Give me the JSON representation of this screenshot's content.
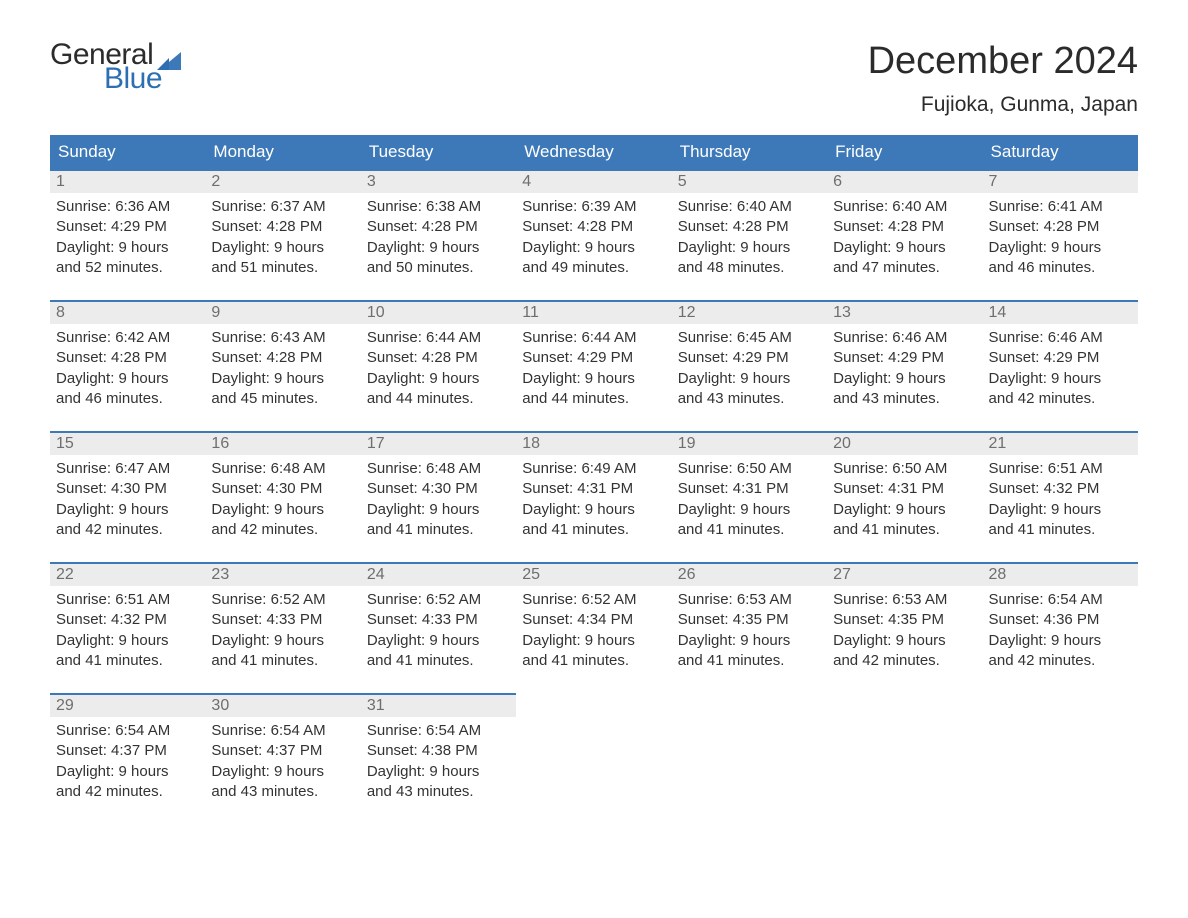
{
  "brand": {
    "text1": "General",
    "text2": "Blue",
    "color1": "#2c2c2c",
    "color2": "#2e6fb3"
  },
  "title": "December 2024",
  "location": "Fujioka, Gunma, Japan",
  "colors": {
    "header_bg": "#3d79b8",
    "header_text": "#ffffff",
    "daynum_bg": "#ececec",
    "daynum_text": "#6e6e6e",
    "day_border": "#3d79b8",
    "body_text": "#333333",
    "page_bg": "#ffffff"
  },
  "fonts": {
    "title_size": 38,
    "location_size": 21,
    "dow_size": 17,
    "daynum_size": 16,
    "body_size": 15
  },
  "daysOfWeek": [
    "Sunday",
    "Monday",
    "Tuesday",
    "Wednesday",
    "Thursday",
    "Friday",
    "Saturday"
  ],
  "weeks": [
    [
      {
        "n": "1",
        "sr": "Sunrise: 6:36 AM",
        "ss": "Sunset: 4:29 PM",
        "d1": "Daylight: 9 hours",
        "d2": "and 52 minutes."
      },
      {
        "n": "2",
        "sr": "Sunrise: 6:37 AM",
        "ss": "Sunset: 4:28 PM",
        "d1": "Daylight: 9 hours",
        "d2": "and 51 minutes."
      },
      {
        "n": "3",
        "sr": "Sunrise: 6:38 AM",
        "ss": "Sunset: 4:28 PM",
        "d1": "Daylight: 9 hours",
        "d2": "and 50 minutes."
      },
      {
        "n": "4",
        "sr": "Sunrise: 6:39 AM",
        "ss": "Sunset: 4:28 PM",
        "d1": "Daylight: 9 hours",
        "d2": "and 49 minutes."
      },
      {
        "n": "5",
        "sr": "Sunrise: 6:40 AM",
        "ss": "Sunset: 4:28 PM",
        "d1": "Daylight: 9 hours",
        "d2": "and 48 minutes."
      },
      {
        "n": "6",
        "sr": "Sunrise: 6:40 AM",
        "ss": "Sunset: 4:28 PM",
        "d1": "Daylight: 9 hours",
        "d2": "and 47 minutes."
      },
      {
        "n": "7",
        "sr": "Sunrise: 6:41 AM",
        "ss": "Sunset: 4:28 PM",
        "d1": "Daylight: 9 hours",
        "d2": "and 46 minutes."
      }
    ],
    [
      {
        "n": "8",
        "sr": "Sunrise: 6:42 AM",
        "ss": "Sunset: 4:28 PM",
        "d1": "Daylight: 9 hours",
        "d2": "and 46 minutes."
      },
      {
        "n": "9",
        "sr": "Sunrise: 6:43 AM",
        "ss": "Sunset: 4:28 PM",
        "d1": "Daylight: 9 hours",
        "d2": "and 45 minutes."
      },
      {
        "n": "10",
        "sr": "Sunrise: 6:44 AM",
        "ss": "Sunset: 4:28 PM",
        "d1": "Daylight: 9 hours",
        "d2": "and 44 minutes."
      },
      {
        "n": "11",
        "sr": "Sunrise: 6:44 AM",
        "ss": "Sunset: 4:29 PM",
        "d1": "Daylight: 9 hours",
        "d2": "and 44 minutes."
      },
      {
        "n": "12",
        "sr": "Sunrise: 6:45 AM",
        "ss": "Sunset: 4:29 PM",
        "d1": "Daylight: 9 hours",
        "d2": "and 43 minutes."
      },
      {
        "n": "13",
        "sr": "Sunrise: 6:46 AM",
        "ss": "Sunset: 4:29 PM",
        "d1": "Daylight: 9 hours",
        "d2": "and 43 minutes."
      },
      {
        "n": "14",
        "sr": "Sunrise: 6:46 AM",
        "ss": "Sunset: 4:29 PM",
        "d1": "Daylight: 9 hours",
        "d2": "and 42 minutes."
      }
    ],
    [
      {
        "n": "15",
        "sr": "Sunrise: 6:47 AM",
        "ss": "Sunset: 4:30 PM",
        "d1": "Daylight: 9 hours",
        "d2": "and 42 minutes."
      },
      {
        "n": "16",
        "sr": "Sunrise: 6:48 AM",
        "ss": "Sunset: 4:30 PM",
        "d1": "Daylight: 9 hours",
        "d2": "and 42 minutes."
      },
      {
        "n": "17",
        "sr": "Sunrise: 6:48 AM",
        "ss": "Sunset: 4:30 PM",
        "d1": "Daylight: 9 hours",
        "d2": "and 41 minutes."
      },
      {
        "n": "18",
        "sr": "Sunrise: 6:49 AM",
        "ss": "Sunset: 4:31 PM",
        "d1": "Daylight: 9 hours",
        "d2": "and 41 minutes."
      },
      {
        "n": "19",
        "sr": "Sunrise: 6:50 AM",
        "ss": "Sunset: 4:31 PM",
        "d1": "Daylight: 9 hours",
        "d2": "and 41 minutes."
      },
      {
        "n": "20",
        "sr": "Sunrise: 6:50 AM",
        "ss": "Sunset: 4:31 PM",
        "d1": "Daylight: 9 hours",
        "d2": "and 41 minutes."
      },
      {
        "n": "21",
        "sr": "Sunrise: 6:51 AM",
        "ss": "Sunset: 4:32 PM",
        "d1": "Daylight: 9 hours",
        "d2": "and 41 minutes."
      }
    ],
    [
      {
        "n": "22",
        "sr": "Sunrise: 6:51 AM",
        "ss": "Sunset: 4:32 PM",
        "d1": "Daylight: 9 hours",
        "d2": "and 41 minutes."
      },
      {
        "n": "23",
        "sr": "Sunrise: 6:52 AM",
        "ss": "Sunset: 4:33 PM",
        "d1": "Daylight: 9 hours",
        "d2": "and 41 minutes."
      },
      {
        "n": "24",
        "sr": "Sunrise: 6:52 AM",
        "ss": "Sunset: 4:33 PM",
        "d1": "Daylight: 9 hours",
        "d2": "and 41 minutes."
      },
      {
        "n": "25",
        "sr": "Sunrise: 6:52 AM",
        "ss": "Sunset: 4:34 PM",
        "d1": "Daylight: 9 hours",
        "d2": "and 41 minutes."
      },
      {
        "n": "26",
        "sr": "Sunrise: 6:53 AM",
        "ss": "Sunset: 4:35 PM",
        "d1": "Daylight: 9 hours",
        "d2": "and 41 minutes."
      },
      {
        "n": "27",
        "sr": "Sunrise: 6:53 AM",
        "ss": "Sunset: 4:35 PM",
        "d1": "Daylight: 9 hours",
        "d2": "and 42 minutes."
      },
      {
        "n": "28",
        "sr": "Sunrise: 6:54 AM",
        "ss": "Sunset: 4:36 PM",
        "d1": "Daylight: 9 hours",
        "d2": "and 42 minutes."
      }
    ],
    [
      {
        "n": "29",
        "sr": "Sunrise: 6:54 AM",
        "ss": "Sunset: 4:37 PM",
        "d1": "Daylight: 9 hours",
        "d2": "and 42 minutes."
      },
      {
        "n": "30",
        "sr": "Sunrise: 6:54 AM",
        "ss": "Sunset: 4:37 PM",
        "d1": "Daylight: 9 hours",
        "d2": "and 43 minutes."
      },
      {
        "n": "31",
        "sr": "Sunrise: 6:54 AM",
        "ss": "Sunset: 4:38 PM",
        "d1": "Daylight: 9 hours",
        "d2": "and 43 minutes."
      },
      null,
      null,
      null,
      null
    ]
  ]
}
